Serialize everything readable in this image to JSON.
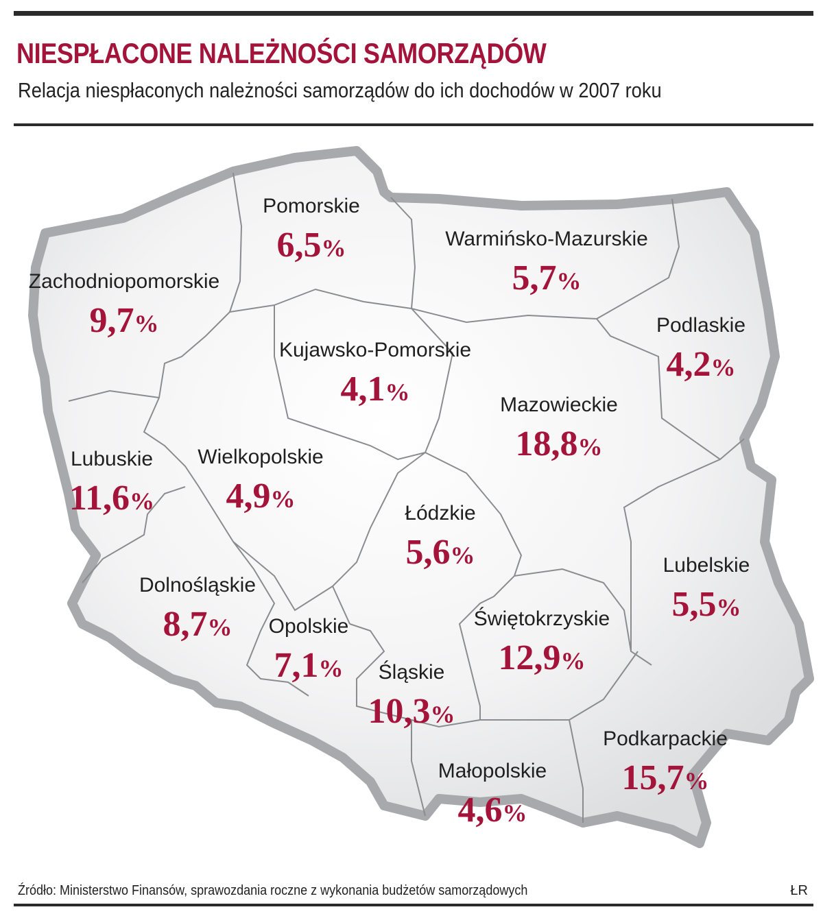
{
  "header": {
    "title": "NIESPŁACONE NALEŻNOŚCI SAMORZĄDÓW",
    "subtitle": "Relacja niespłaconych należności samorządów do ich dochodów w 2007 roku"
  },
  "colors": {
    "accent": "#a3133a",
    "map_fill": "#e4e5e7",
    "map_border": "#a7a9ac",
    "region_line": "#8a8c8f",
    "text": "#1f1f1f"
  },
  "regions": [
    {
      "name": "Pomorskie",
      "value": "6,5",
      "unit": "%"
    },
    {
      "name": "Warmińsko-Mazurskie",
      "value": "5,7",
      "unit": "%"
    },
    {
      "name": "Zachodniopomorskie",
      "value": "9,7",
      "unit": "%"
    },
    {
      "name": "Kujawsko-Pomorskie",
      "value": "4,1",
      "unit": "%"
    },
    {
      "name": "Podlaskie",
      "value": "4,2",
      "unit": "%"
    },
    {
      "name": "Mazowieckie",
      "value": "18,8",
      "unit": "%"
    },
    {
      "name": "Lubuskie",
      "value": "11,6",
      "unit": "%"
    },
    {
      "name": "Wielkopolskie",
      "value": "4,9",
      "unit": "%"
    },
    {
      "name": "Łódzkie",
      "value": "5,6",
      "unit": "%"
    },
    {
      "name": "Lubelskie",
      "value": "5,5",
      "unit": "%"
    },
    {
      "name": "Dolnośląskie",
      "value": "8,7",
      "unit": "%"
    },
    {
      "name": "Opolskie",
      "value": "7,1",
      "unit": "%"
    },
    {
      "name": "Świętokrzyskie",
      "value": "12,9",
      "unit": "%"
    },
    {
      "name": "Śląskie",
      "value": "10,3",
      "unit": "%"
    },
    {
      "name": "Podkarpackie",
      "value": "15,7",
      "unit": "%"
    },
    {
      "name": "Małopolskie",
      "value": "4,6",
      "unit": "%"
    }
  ],
  "footer": {
    "source": "Źródło: Ministerstwo Finansów, sprawozdania roczne z wykonania budżetów samorządowych",
    "credit": "ŁR"
  }
}
